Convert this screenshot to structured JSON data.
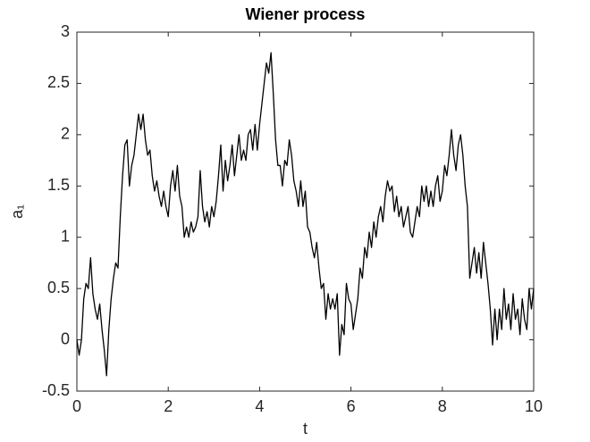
{
  "chart_data": {
    "type": "line",
    "title": "Wiener process",
    "xlabel": "t",
    "ylabel": "a₁",
    "color": "#000000",
    "x": [
      0,
      0.05,
      0.1,
      0.15,
      0.2,
      0.25,
      0.3,
      0.35,
      0.4,
      0.45,
      0.5,
      0.55,
      0.6,
      0.65,
      0.7,
      0.75,
      0.8,
      0.85,
      0.9,
      0.95,
      1,
      1.05,
      1.1,
      1.15,
      1.2,
      1.25,
      1.3,
      1.35,
      1.4,
      1.45,
      1.5,
      1.55,
      1.6,
      1.65,
      1.7,
      1.75,
      1.8,
      1.85,
      1.9,
      1.95,
      2,
      2.05,
      2.1,
      2.15,
      2.2,
      2.25,
      2.3,
      2.35,
      2.4,
      2.45,
      2.5,
      2.55,
      2.6,
      2.65,
      2.7,
      2.75,
      2.8,
      2.85,
      2.9,
      2.95,
      3,
      3.05,
      3.1,
      3.15,
      3.2,
      3.25,
      3.3,
      3.35,
      3.4,
      3.45,
      3.5,
      3.55,
      3.6,
      3.65,
      3.7,
      3.75,
      3.8,
      3.85,
      3.9,
      3.95,
      4,
      4.05,
      4.1,
      4.15,
      4.2,
      4.25,
      4.3,
      4.35,
      4.4,
      4.45,
      4.5,
      4.55,
      4.6,
      4.65,
      4.7,
      4.75,
      4.8,
      4.85,
      4.9,
      4.95,
      5,
      5.05,
      5.1,
      5.15,
      5.2,
      5.25,
      5.3,
      5.35,
      5.4,
      5.45,
      5.5,
      5.55,
      5.6,
      5.65,
      5.7,
      5.75,
      5.8,
      5.85,
      5.9,
      5.95,
      6,
      6.05,
      6.1,
      6.15,
      6.2,
      6.25,
      6.3,
      6.35,
      6.4,
      6.45,
      6.5,
      6.55,
      6.6,
      6.65,
      6.7,
      6.75,
      6.8,
      6.85,
      6.9,
      6.95,
      7,
      7.05,
      7.1,
      7.15,
      7.2,
      7.25,
      7.3,
      7.35,
      7.4,
      7.45,
      7.5,
      7.55,
      7.6,
      7.65,
      7.7,
      7.75,
      7.8,
      7.85,
      7.9,
      7.95,
      8,
      8.05,
      8.1,
      8.15,
      8.2,
      8.25,
      8.3,
      8.35,
      8.4,
      8.45,
      8.5,
      8.55,
      8.6,
      8.65,
      8.7,
      8.75,
      8.8,
      8.85,
      8.9,
      8.95,
      9,
      9.05,
      9.1,
      9.15,
      9.2,
      9.25,
      9.3,
      9.35,
      9.4,
      9.45,
      9.5,
      9.55,
      9.6,
      9.65,
      9.7,
      9.75,
      9.8,
      9.85,
      9.9,
      9.95,
      10
    ],
    "values": [
      0,
      -0.15,
      0,
      0.4,
      0.55,
      0.5,
      0.8,
      0.45,
      0.3,
      0.2,
      0.35,
      0.1,
      -0.1,
      -0.35,
      0.1,
      0.4,
      0.6,
      0.75,
      0.7,
      1.2,
      1.6,
      1.9,
      1.95,
      1.5,
      1.7,
      1.8,
      2.0,
      2.2,
      2.05,
      2.2,
      1.95,
      1.8,
      1.85,
      1.6,
      1.45,
      1.55,
      1.4,
      1.3,
      1.45,
      1.3,
      1.2,
      1.5,
      1.65,
      1.45,
      1.7,
      1.4,
      1.3,
      1.0,
      1.1,
      1.0,
      1.15,
      1.05,
      1.1,
      1.2,
      1.65,
      1.3,
      1.15,
      1.25,
      1.1,
      1.3,
      1.2,
      1.35,
      1.6,
      1.9,
      1.45,
      1.75,
      1.55,
      1.7,
      1.9,
      1.6,
      1.8,
      2.0,
      1.75,
      1.85,
      1.75,
      2.0,
      2.05,
      1.85,
      2.1,
      1.85,
      2.1,
      2.3,
      2.5,
      2.7,
      2.6,
      2.8,
      2.4,
      1.95,
      1.7,
      1.7,
      1.5,
      1.75,
      1.7,
      1.95,
      1.8,
      1.55,
      1.45,
      1.3,
      1.55,
      1.3,
      1.45,
      1.1,
      1.05,
      0.9,
      0.8,
      0.95,
      0.7,
      0.5,
      0.55,
      0.2,
      0.45,
      0.3,
      0.4,
      0.3,
      0.45,
      -0.15,
      0.15,
      0.05,
      0.55,
      0.4,
      0.35,
      0.1,
      0.25,
      0.4,
      0.7,
      0.6,
      0.9,
      0.8,
      1.05,
      0.9,
      1.15,
      1.0,
      1.2,
      1.3,
      1.15,
      1.4,
      1.55,
      1.45,
      1.5,
      1.25,
      1.4,
      1.2,
      1.3,
      1.1,
      1.2,
      1.3,
      1.05,
      1.0,
      1.15,
      1.3,
      1.2,
      1.5,
      1.35,
      1.5,
      1.3,
      1.45,
      1.3,
      1.5,
      1.6,
      1.35,
      1.45,
      1.7,
      1.6,
      1.8,
      2.05,
      1.8,
      1.65,
      1.9,
      2.0,
      1.8,
      1.5,
      1.3,
      0.6,
      0.75,
      0.9,
      0.65,
      0.85,
      0.6,
      0.95,
      0.75,
      0.55,
      0.3,
      -0.05,
      0.3,
      0.0,
      0.3,
      0.1,
      0.5,
      0.2,
      0.35,
      0.1,
      0.45,
      0.2,
      0.3,
      0.05,
      0.4,
      0.2,
      0.1,
      0.5,
      0.3,
      0.5
    ],
    "xlim": [
      0,
      10
    ],
    "xticks": [
      0,
      2,
      4,
      6,
      8,
      10
    ],
    "ylim": [
      -0.5,
      3
    ],
    "yticks": [
      -0.5,
      0,
      0.5,
      1,
      1.5,
      2,
      2.5,
      3
    ]
  }
}
